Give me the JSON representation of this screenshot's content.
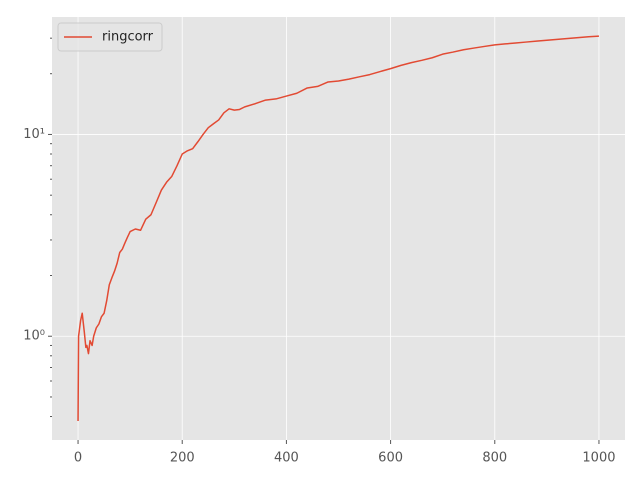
{
  "chart_data": {
    "type": "line",
    "x": [
      0,
      1,
      5,
      8,
      12,
      15,
      17,
      20,
      23,
      27,
      30,
      35,
      40,
      45,
      50,
      55,
      60,
      65,
      70,
      75,
      80,
      85,
      90,
      95,
      100,
      110,
      120,
      130,
      140,
      150,
      160,
      170,
      180,
      190,
      200,
      210,
      220,
      230,
      240,
      250,
      260,
      270,
      280,
      290,
      300,
      310,
      320,
      340,
      360,
      380,
      400,
      420,
      440,
      460,
      480,
      500,
      520,
      540,
      560,
      580,
      600,
      620,
      640,
      660,
      680,
      700,
      720,
      740,
      760,
      780,
      800,
      820,
      840,
      860,
      880,
      900,
      920,
      940,
      960,
      980,
      1000
    ],
    "series": [
      {
        "name": "ringcorr",
        "color": "#E24A33",
        "values": [
          0.38,
          1.0,
          1.2,
          1.3,
          1.05,
          0.88,
          0.9,
          0.82,
          0.95,
          0.9,
          1.0,
          1.1,
          1.15,
          1.25,
          1.3,
          1.5,
          1.8,
          1.95,
          2.1,
          2.3,
          2.6,
          2.7,
          2.9,
          3.1,
          3.3,
          3.4,
          3.35,
          3.8,
          4.0,
          4.6,
          5.3,
          5.8,
          6.2,
          7.0,
          8.0,
          8.3,
          8.5,
          9.2,
          10.0,
          10.8,
          11.3,
          11.8,
          12.8,
          13.4,
          13.2,
          13.3,
          13.7,
          14.2,
          14.8,
          15.0,
          15.5,
          16.0,
          17.0,
          17.3,
          18.2,
          18.4,
          18.8,
          19.3,
          19.8,
          20.5,
          21.2,
          22.0,
          22.7,
          23.3,
          24.0,
          25.0,
          25.6,
          26.3,
          26.8,
          27.3,
          27.8,
          28.1,
          28.4,
          28.7,
          29.0,
          29.3,
          29.6,
          29.9,
          30.2,
          30.5,
          30.7
        ]
      }
    ],
    "xlim": [
      -50,
      1050
    ],
    "xticks": [
      0,
      200,
      400,
      600,
      800,
      1000
    ],
    "ylim": [
      0.306,
      38.2
    ],
    "ylog": true,
    "yticks": [
      {
        "value": 1,
        "label": "10⁰"
      },
      {
        "value": 10,
        "label": "10¹"
      }
    ],
    "yminorticks": [
      0.4,
      0.5,
      0.6,
      0.7,
      0.8,
      0.9,
      2,
      3,
      4,
      5,
      6,
      7,
      8,
      9,
      20,
      30
    ],
    "grid": true,
    "legend": "upper left"
  }
}
